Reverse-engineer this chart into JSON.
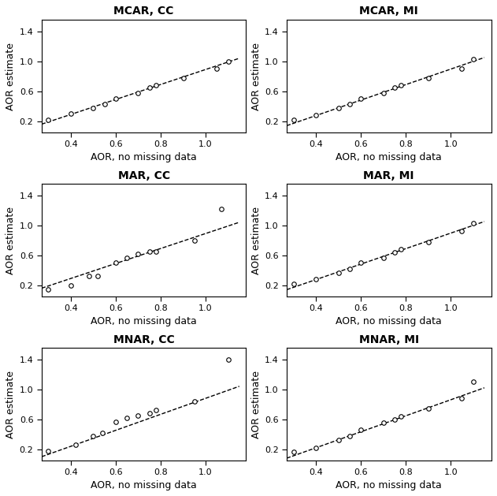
{
  "plots": [
    {
      "title": "MCAR, CC",
      "x": [
        0.3,
        0.4,
        0.5,
        0.55,
        0.6,
        0.7,
        0.75,
        0.78,
        0.9,
        1.05,
        1.1
      ],
      "y": [
        0.22,
        0.3,
        0.38,
        0.43,
        0.5,
        0.58,
        0.65,
        0.68,
        0.78,
        0.9,
        1.0
      ],
      "dline_x": [
        0.27,
        1.15
      ],
      "dline_y": [
        0.16,
        1.04
      ]
    },
    {
      "title": "MCAR, MI",
      "x": [
        0.3,
        0.4,
        0.5,
        0.55,
        0.6,
        0.7,
        0.75,
        0.78,
        0.9,
        1.05,
        1.1
      ],
      "y": [
        0.22,
        0.28,
        0.38,
        0.43,
        0.5,
        0.58,
        0.65,
        0.68,
        0.78,
        0.9,
        1.03
      ],
      "dline_x": [
        0.27,
        1.15
      ],
      "dline_y": [
        0.14,
        1.05
      ]
    },
    {
      "title": "MAR, CC",
      "x": [
        0.3,
        0.4,
        0.48,
        0.52,
        0.6,
        0.65,
        0.7,
        0.75,
        0.78,
        0.95,
        1.07
      ],
      "y": [
        0.14,
        0.2,
        0.32,
        0.32,
        0.5,
        0.57,
        0.62,
        0.65,
        0.65,
        0.8,
        1.22
      ],
      "dline_x": [
        0.27,
        1.15
      ],
      "dline_y": [
        0.16,
        1.04
      ]
    },
    {
      "title": "MAR, MI",
      "x": [
        0.3,
        0.4,
        0.5,
        0.55,
        0.6,
        0.7,
        0.75,
        0.78,
        0.9,
        1.05,
        1.1
      ],
      "y": [
        0.22,
        0.28,
        0.37,
        0.42,
        0.5,
        0.57,
        0.64,
        0.68,
        0.78,
        0.92,
        1.03
      ],
      "dline_x": [
        0.27,
        1.15
      ],
      "dline_y": [
        0.14,
        1.05
      ]
    },
    {
      "title": "MNAR, CC",
      "x": [
        0.3,
        0.42,
        0.5,
        0.54,
        0.6,
        0.65,
        0.7,
        0.75,
        0.78,
        0.95,
        1.1
      ],
      "y": [
        0.18,
        0.26,
        0.38,
        0.42,
        0.56,
        0.62,
        0.65,
        0.68,
        0.72,
        0.84,
        1.4
      ],
      "dline_x": [
        0.27,
        1.15
      ],
      "dline_y": [
        0.1,
        1.04
      ]
    },
    {
      "title": "MNAR, MI",
      "x": [
        0.3,
        0.4,
        0.5,
        0.55,
        0.6,
        0.7,
        0.75,
        0.78,
        0.9,
        1.05,
        1.1
      ],
      "y": [
        0.16,
        0.22,
        0.32,
        0.38,
        0.46,
        0.55,
        0.6,
        0.64,
        0.74,
        0.88,
        1.1
      ],
      "dline_x": [
        0.27,
        1.15
      ],
      "dline_y": [
        0.08,
        1.02
      ]
    }
  ],
  "xlim": [
    0.27,
    1.18
  ],
  "ylim": [
    0.05,
    1.55
  ],
  "xticks": [
    0.4,
    0.6,
    0.8,
    1.0
  ],
  "yticks": [
    0.2,
    0.6,
    1.0,
    1.4
  ],
  "xlabel": "AOR, no missing data",
  "ylabel": "AOR estimate",
  "bg_color": "#FFFFFF",
  "plot_bg": "#FFFFFF",
  "marker": "o",
  "marker_size": 4,
  "marker_facecolor": "white",
  "marker_edgecolor": "black",
  "line_style": "--",
  "line_color": "black",
  "title_fontsize": 10,
  "label_fontsize": 9,
  "tick_fontsize": 8,
  "text_color": "black",
  "title_color": "black"
}
